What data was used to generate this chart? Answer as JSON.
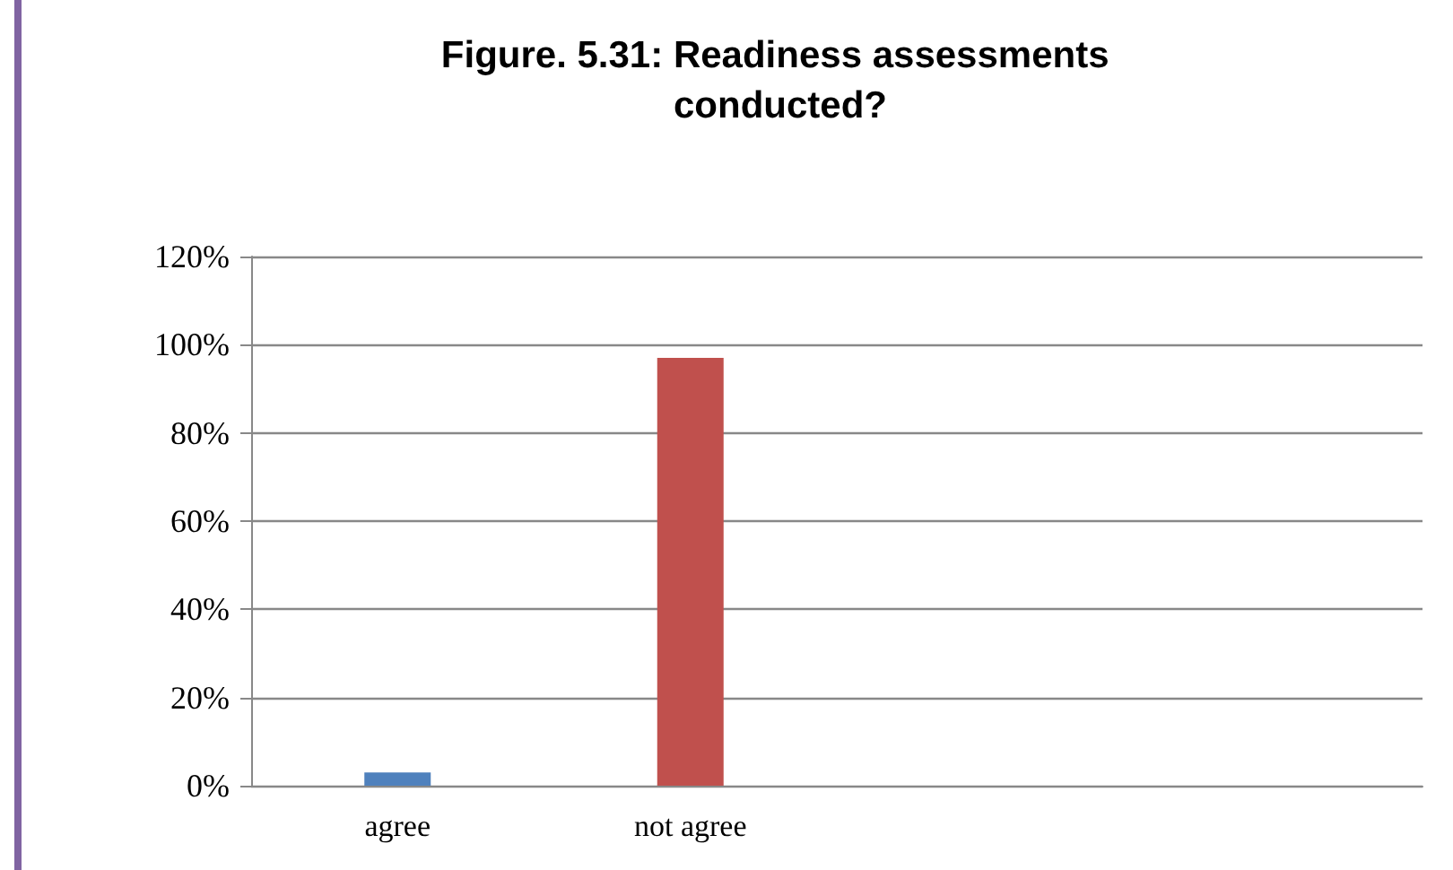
{
  "chart_data": {
    "type": "bar",
    "title": "Figure. 5.31: Readiness assessments conducted?",
    "categories": [
      "agree",
      "not agree",
      null,
      null
    ],
    "values": [
      3,
      97,
      null,
      null
    ],
    "colors": [
      "#4f81bd",
      "#c0504d",
      "#4f81bd",
      "#4f81bd"
    ],
    "ylim": [
      0,
      120
    ],
    "yticks": [
      {
        "value": 0,
        "label": "0%"
      },
      {
        "value": 20,
        "label": "20%"
      },
      {
        "value": 40,
        "label": "40%"
      },
      {
        "value": 60,
        "label": "60%"
      },
      {
        "value": 80,
        "label": "80%"
      },
      {
        "value": 100,
        "label": "100%"
      },
      {
        "value": 120,
        "label": "120%"
      }
    ],
    "grid": "y"
  }
}
